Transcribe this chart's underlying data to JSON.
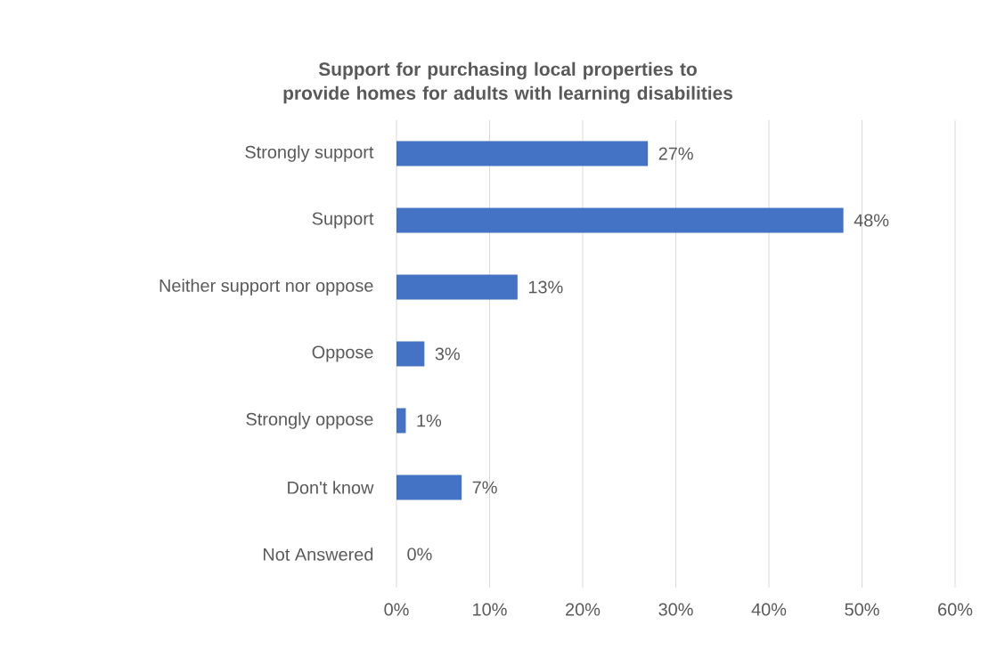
{
  "chart_data": {
    "type": "bar",
    "orientation": "horizontal",
    "title": "Support for purchasing local properties to provide homes for adults with learning disabilities",
    "categories": [
      "Strongly support",
      "Support",
      "Neither support nor oppose",
      "Oppose",
      "Strongly oppose",
      "Don't know",
      "Not Answered"
    ],
    "values": [
      27,
      48,
      13,
      3,
      1,
      7,
      0
    ],
    "value_labels": [
      "27%",
      "48%",
      "13%",
      "3%",
      "1%",
      "7%",
      "0%"
    ],
    "color": "#4472c4",
    "xlim": [
      0,
      60
    ],
    "xticks": [
      {
        "value": 0,
        "label": "0%"
      },
      {
        "value": 10,
        "label": "10%"
      },
      {
        "value": 20,
        "label": "20%"
      },
      {
        "value": 30,
        "label": "30%"
      },
      {
        "value": 40,
        "label": "40%"
      },
      {
        "value": 50,
        "label": "50%"
      },
      {
        "value": 60,
        "label": "60%"
      }
    ],
    "grid": "x"
  }
}
